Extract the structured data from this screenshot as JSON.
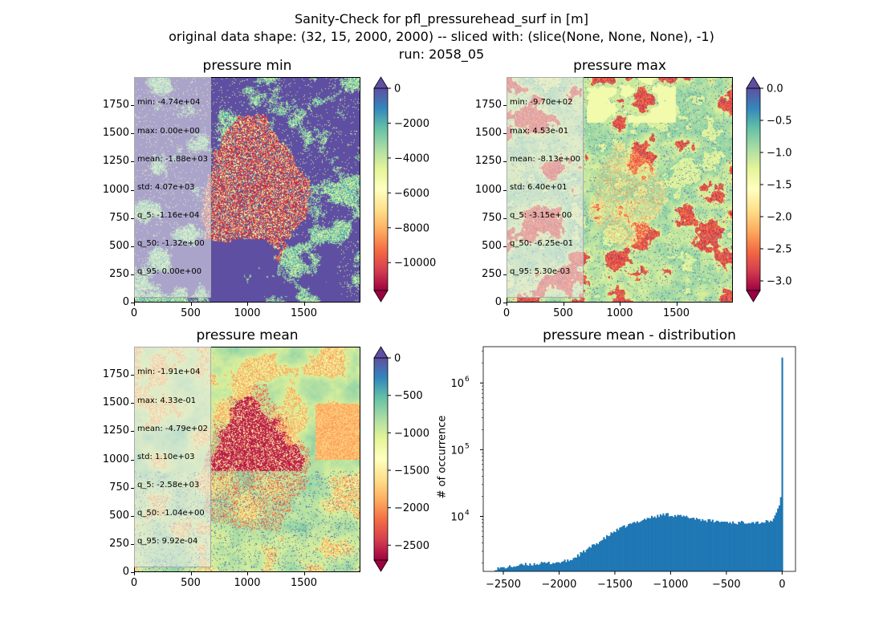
{
  "title": {
    "line1": "Sanity-Check for pfl_pressurehead_surf in [m]",
    "line2": "original data shape: (32, 15, 2000, 2000) -- sliced with: (slice(None, None, None), -1)",
    "line3": "run: 2058_05"
  },
  "panels": [
    {
      "title": "pressure min",
      "colormap": "Spectral",
      "xticks": [
        "0",
        "500",
        "1000",
        "1500"
      ],
      "yticks": [
        "0",
        "250",
        "500",
        "750",
        "1000",
        "1250",
        "1500",
        "1750"
      ],
      "colorbar_ticks": [
        "0",
        "−2000",
        "−4000",
        "−6000",
        "−8000",
        "−10000"
      ],
      "colorbar_range": [
        -11600,
        0
      ],
      "stats": [
        "min: -4.74e+04",
        "max: 0.00e+00",
        "mean: -1.88e+03",
        "std: 4.07e+03",
        "q_5: -1.16e+04",
        "q_50: -1.32e+00",
        "q_95: 0.00e+00"
      ]
    },
    {
      "title": "pressure max",
      "colormap": "Spectral",
      "xticks": [
        "0",
        "500",
        "1000",
        "1500"
      ],
      "yticks": [
        "0",
        "250",
        "500",
        "750",
        "1000",
        "1250",
        "1500",
        "1750"
      ],
      "colorbar_ticks": [
        "0.0",
        "−0.5",
        "−1.0",
        "−1.5",
        "−2.0",
        "−2.5",
        "−3.0"
      ],
      "colorbar_range": [
        -3.15,
        0
      ],
      "stats": [
        "min: -9.70e+02",
        "max: 4.53e-01",
        "mean: -8.13e+00",
        "std: 6.40e+01",
        "q_5: -3.15e+00",
        "q_50: -6.25e-01",
        "q_95: 5.30e-03"
      ]
    },
    {
      "title": "pressure mean",
      "colormap": "Spectral",
      "xticks": [
        "0",
        "500",
        "1000",
        "1500"
      ],
      "yticks": [
        "0",
        "250",
        "500",
        "750",
        "1000",
        "1250",
        "1500",
        "1750"
      ],
      "colorbar_ticks": [
        "0",
        "−500",
        "−1000",
        "−1500",
        "−2000",
        "−2500"
      ],
      "colorbar_range": [
        -2700,
        0
      ],
      "stats": [
        "min: -1.91e+04",
        "max: 4.33e-01",
        "mean: -4.79e+02",
        "std: 1.10e+03",
        "q_5: -2.58e+03",
        "q_50: -1.04e+00",
        "q_95: 9.92e-04"
      ]
    }
  ],
  "chart_data": {
    "type": "bar",
    "title": "pressure mean - distribution",
    "xlabel": "",
    "ylabel": "# of occurrence",
    "yscale": "log",
    "xlim": [
      -2680,
      120
    ],
    "ylim": [
      1500,
      3500000
    ],
    "xticks": [
      "−2500",
      "−2000",
      "−1500",
      "−1000",
      "−500",
      "0"
    ],
    "yticks": [
      "10",
      "10",
      "10"
    ],
    "ytick_exponents": [
      "4",
      "5",
      "6"
    ],
    "bar_color": "#1f77b4",
    "anchors": [
      [
        -2580,
        1650
      ],
      [
        -2500,
        1700
      ],
      [
        -2300,
        1900
      ],
      [
        -2100,
        2000
      ],
      [
        -2000,
        2050
      ],
      [
        -1900,
        2200
      ],
      [
        -1800,
        2800
      ],
      [
        -1700,
        3600
      ],
      [
        -1600,
        4600
      ],
      [
        -1500,
        6000
      ],
      [
        -1400,
        7200
      ],
      [
        -1300,
        8300
      ],
      [
        -1200,
        9500
      ],
      [
        -1100,
        10200
      ],
      [
        -1050,
        10900
      ],
      [
        -1000,
        10500
      ],
      [
        -900,
        10000
      ],
      [
        -800,
        9500
      ],
      [
        -700,
        8800
      ],
      [
        -600,
        8400
      ],
      [
        -500,
        8300
      ],
      [
        -400,
        8000
      ],
      [
        -300,
        8300
      ],
      [
        -200,
        8100
      ],
      [
        -100,
        8500
      ],
      [
        -60,
        10000
      ],
      [
        -30,
        14000
      ],
      [
        -10,
        20000
      ],
      [
        0,
        2400000
      ]
    ]
  }
}
